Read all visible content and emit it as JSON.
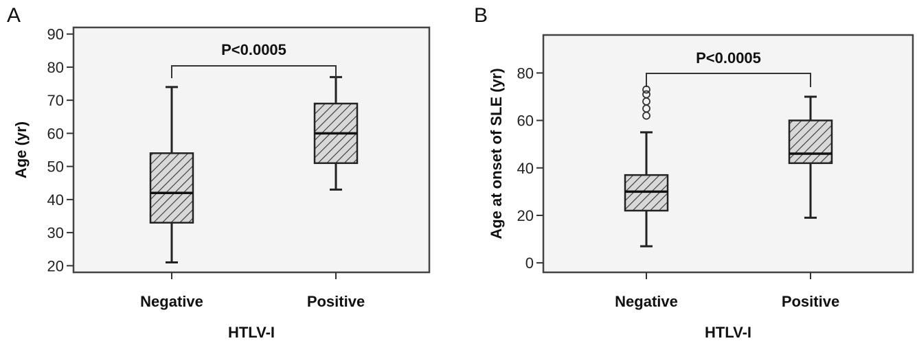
{
  "chart_data": [
    {
      "panel_label": "A",
      "type": "box",
      "xlabel": "HTLV-I",
      "ylabel": "Age (yr)",
      "categories": [
        "Negative",
        "Positive"
      ],
      "ylim": [
        18,
        92
      ],
      "yticks": [
        20,
        30,
        40,
        50,
        60,
        70,
        80,
        90
      ],
      "boxes": [
        {
          "category": "Negative",
          "min": 21,
          "q1": 33,
          "median": 42,
          "q3": 54,
          "max": 74,
          "outliers": []
        },
        {
          "category": "Positive",
          "min": 43,
          "q1": 51,
          "median": 60,
          "q3": 69,
          "max": 77,
          "outliers": []
        }
      ],
      "annotation": "P<0.0005",
      "grid": false
    },
    {
      "panel_label": "B",
      "type": "box",
      "xlabel": "HTLV-I",
      "ylabel": "Age at onset of SLE (yr)",
      "categories": [
        "Negative",
        "Positive"
      ],
      "ylim": [
        -4,
        96
      ],
      "yticks": [
        0,
        20,
        40,
        60,
        80
      ],
      "boxes": [
        {
          "category": "Negative",
          "min": 7,
          "q1": 22,
          "median": 30,
          "q3": 37,
          "max": 55,
          "outliers": [
            62,
            65,
            68,
            71,
            73
          ]
        },
        {
          "category": "Positive",
          "min": 19,
          "q1": 42,
          "median": 46,
          "q3": 60,
          "max": 70,
          "outliers": []
        }
      ],
      "annotation": "P<0.0005",
      "grid": false
    }
  ]
}
